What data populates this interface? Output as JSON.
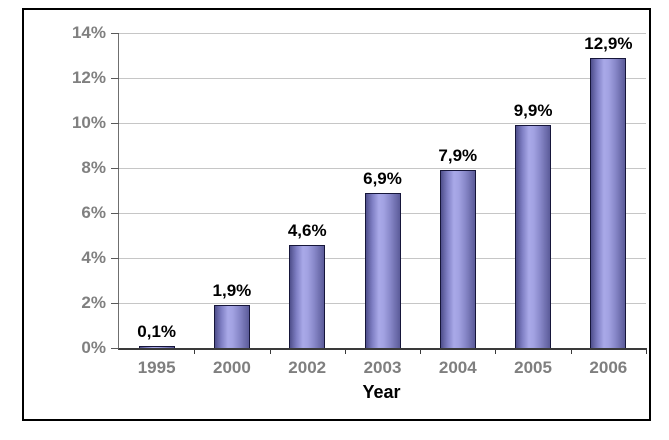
{
  "chart_data": {
    "type": "bar",
    "title": "",
    "xlabel": "Year",
    "ylabel": "",
    "categories": [
      "1995",
      "2000",
      "2002",
      "2003",
      "2004",
      "2005",
      "2006"
    ],
    "values": [
      0.1,
      1.9,
      4.6,
      6.9,
      7.9,
      9.9,
      12.9
    ],
    "bar_labels": [
      "0,1%",
      "1,9%",
      "4,6%",
      "6,9%",
      "7,9%",
      "9,9%",
      "12,9%"
    ],
    "ylim": [
      0,
      14
    ],
    "ytick_step": 2,
    "ytick_labels": [
      "0%",
      "2%",
      "4%",
      "6%",
      "8%",
      "10%",
      "12%",
      "14%"
    ],
    "grid": true,
    "legend": "none",
    "colors": {
      "bar_center": "#a9a9e8",
      "bar_edge": "#4f4f8b",
      "bar_outline": "#16163a",
      "axis_text": "#808080",
      "data_label_text": "#000000",
      "gridline": "#c6c6c6",
      "frame_border": "#000000",
      "background": "#ffffff"
    }
  }
}
